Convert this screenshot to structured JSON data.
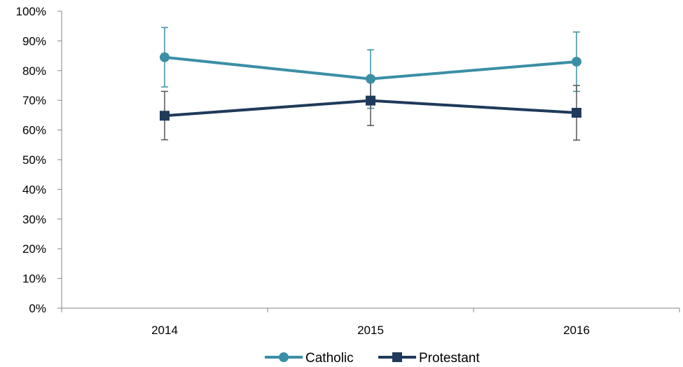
{
  "chart_data": {
    "type": "line",
    "title": "",
    "xlabel": "",
    "ylabel": "",
    "categories": [
      "2014",
      "2015",
      "2016"
    ],
    "ylim": [
      0,
      100
    ],
    "y_ticks": [
      "0%",
      "10%",
      "20%",
      "30%",
      "40%",
      "50%",
      "60%",
      "70%",
      "80%",
      "90%",
      "100%"
    ],
    "grid": false,
    "legend_position": "bottom",
    "series": [
      {
        "name": "Catholic",
        "color": "#3a8fa6",
        "marker": "circle",
        "values": [
          84.5,
          77.2,
          83.0
        ],
        "error_low": [
          74.5,
          67.3,
          73.0
        ],
        "error_high": [
          94.5,
          87.0,
          93.0
        ]
      },
      {
        "name": "Protestant",
        "color": "#1f3a5a",
        "marker": "square",
        "error_color": "#555555",
        "values": [
          64.8,
          69.9,
          65.8
        ],
        "error_low": [
          56.7,
          61.5,
          56.6
        ],
        "error_high": [
          73.0,
          78.0,
          75.0
        ]
      }
    ]
  }
}
